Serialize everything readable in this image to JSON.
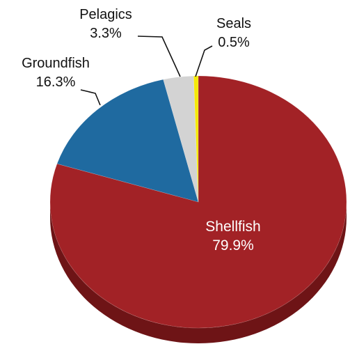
{
  "chart_data": {
    "type": "pie",
    "slices": [
      {
        "label": "Shellfish",
        "value": 79.9,
        "value_label": "79.9%",
        "color": "#a22226",
        "side_color": "#6e1416",
        "label_position": "inside"
      },
      {
        "label": "Groundfish",
        "value": 16.3,
        "value_label": "16.3%",
        "color": "#1f6aa0",
        "side_color": "#15496f",
        "label_position": "outside"
      },
      {
        "label": "Pelagics",
        "value": 3.3,
        "value_label": "3.3%",
        "color": "#d3d3d3",
        "side_color": "#9c9c9c",
        "label_position": "outside"
      },
      {
        "label": "Seals",
        "value": 0.5,
        "value_label": "0.5%",
        "color": "#f5e90a",
        "side_color": "#b3aa07",
        "label_position": "outside"
      }
    ],
    "start_angle": "12 o'clock",
    "direction": "clockwise",
    "style": "3d-tilted",
    "legend": "none"
  }
}
